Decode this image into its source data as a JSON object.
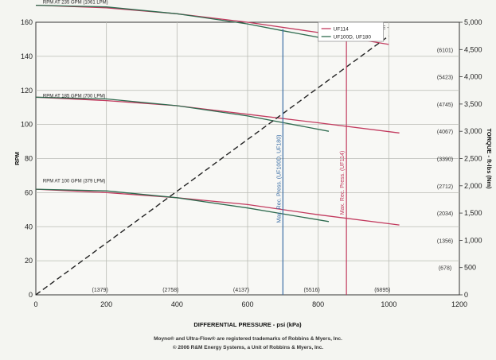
{
  "chart_data": {
    "type": "line",
    "xlabel": "DIFFERENTIAL PRESSURE - psi (kPa)",
    "ylabel": "RPM",
    "y2label": "TORQUE - ft-lbs (Nm)",
    "xlim": [
      0,
      1200
    ],
    "ylim": [
      0,
      160
    ],
    "y2lim": [
      0,
      5000
    ],
    "grid": true,
    "legend_placement": "top-right",
    "x_ticks": [
      "0",
      "200",
      "400",
      "600",
      "800",
      "1000",
      "1200"
    ],
    "x_secondary_ticks": [
      {
        "x": 200,
        "label": "(1379)"
      },
      {
        "x": 400,
        "label": "(2758)"
      },
      {
        "x": 600,
        "label": "(4137)"
      },
      {
        "x": 800,
        "label": "(5516)"
      },
      {
        "x": 1000,
        "label": "(6895)"
      }
    ],
    "y_ticks": [
      "0",
      "20",
      "40",
      "60",
      "80",
      "100",
      "120",
      "140",
      "160"
    ],
    "y2_ticks": [
      "0",
      "500",
      "1,000",
      "1,500",
      "2,000",
      "2,500",
      "3,000",
      "3,500",
      "4,000",
      "4,500",
      "5,000"
    ],
    "y2_secondary_ticks": [
      {
        "y": 500,
        "label": "(678)"
      },
      {
        "y": 1000,
        "label": "(1356)"
      },
      {
        "y": 1500,
        "label": "(2034)"
      },
      {
        "y": 2000,
        "label": "(2712)"
      },
      {
        "y": 2500,
        "label": "(3390)"
      },
      {
        "y": 3000,
        "label": "(4067)"
      },
      {
        "y": 3500,
        "label": "(4745)"
      },
      {
        "y": 4000,
        "label": "(5423)"
      },
      {
        "y": 4500,
        "label": "(6101)"
      }
    ],
    "legend": [
      {
        "label": "UF114",
        "color": "#c23a5e"
      },
      {
        "label": "UF100D, UF180",
        "color": "#2f6b4f"
      }
    ],
    "curve_labels": [
      {
        "x": 20,
        "y": 170,
        "text": "RPM AT 235 GPM (1061 LPM)"
      },
      {
        "x": 20,
        "y": 115,
        "text": "RPM AT 185 GPM (700 LPM)"
      },
      {
        "x": 20,
        "y": 65,
        "text": "RPM AT 100 GPM (379 LPM)"
      }
    ],
    "series": [
      {
        "name": "UF114",
        "color": "#c23a5e",
        "group": "235",
        "x": [
          0,
          200,
          400,
          600,
          800,
          1000
        ],
        "y": [
          170,
          168.5,
          165,
          160,
          154,
          147
        ]
      },
      {
        "name": "UF100D, UF180",
        "color": "#2f6b4f",
        "group": "235",
        "x": [
          0,
          200,
          400,
          600,
          700,
          830
        ],
        "y": [
          170,
          169,
          165,
          159,
          155,
          150
        ]
      },
      {
        "name": "UF114",
        "color": "#c23a5e",
        "group": "185",
        "x": [
          0,
          200,
          400,
          600,
          800,
          1030
        ],
        "y": [
          116,
          114,
          111,
          106,
          101,
          95
        ]
      },
      {
        "name": "UF100D, UF180",
        "color": "#2f6b4f",
        "group": "185",
        "x": [
          0,
          200,
          400,
          600,
          830
        ],
        "y": [
          116,
          115,
          111,
          105,
          96
        ]
      },
      {
        "name": "UF114",
        "color": "#c23a5e",
        "group": "100",
        "x": [
          0,
          200,
          400,
          600,
          800,
          1030
        ],
        "y": [
          62,
          60,
          57,
          53,
          47,
          41
        ]
      },
      {
        "name": "UF100D, UF180",
        "color": "#2f6b4f",
        "group": "100",
        "x": [
          0,
          200,
          400,
          600,
          830
        ],
        "y": [
          62,
          61,
          57,
          51,
          43
        ]
      },
      {
        "name": "TORQUE",
        "color": "#222222",
        "style": "dashed",
        "axis": "y2",
        "x": [
          0,
          1000
        ],
        "y": [
          0,
          4750
        ]
      }
    ],
    "torque_label": {
      "x": 1000,
      "y": 156,
      "text": "TORQUE -"
    },
    "limits": [
      {
        "x": 700,
        "color": "#3a6ea5",
        "text": "Max. Rec. Press. (UF100D, UF180)"
      },
      {
        "x": 880,
        "color": "#c23a5e",
        "text": "Max. Rec. Press. (UF114)"
      }
    ]
  },
  "footer": {
    "line1": "Moyno® and Ultra-Flow® are registered trademarks of Robbins & Myers, Inc.",
    "line2": "© 2006 R&M Energy Systems, a Unit of Robbins & Myers, Inc."
  }
}
